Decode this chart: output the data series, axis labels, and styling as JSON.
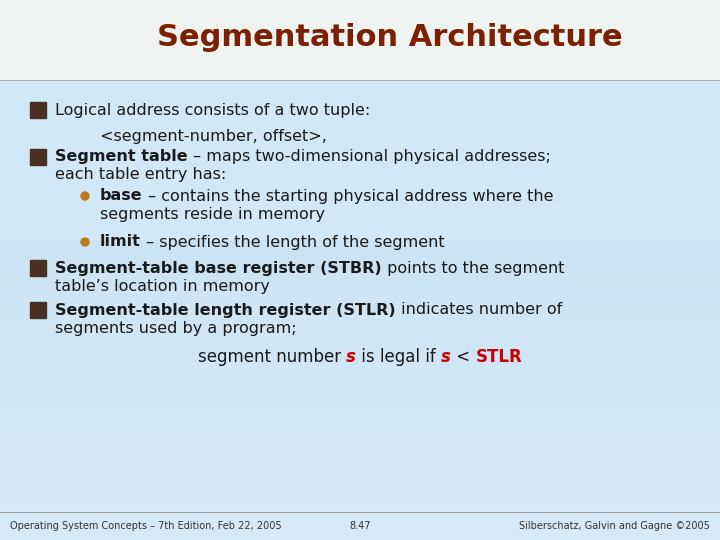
{
  "title": "Segmentation Architecture",
  "title_color": "#7B2000",
  "title_fontsize": 22,
  "bg_color": "#d0e8f8",
  "bg_top_color": "#f0f7ff",
  "bullet_sq_color": "#4a3020",
  "bullet_circle_color": "#c07820",
  "text_color": "#1a1a1a",
  "bold_color": "#1a1a1a",
  "red_color": "#cc0000",
  "footer_text": "Operating System Concepts – 7th Edition, Feb 22, 2005",
  "footer_page": "8.47",
  "footer_right": "Silberschatz, Galvin and Gagne ©2005",
  "header_bg": "#f5f5f0"
}
